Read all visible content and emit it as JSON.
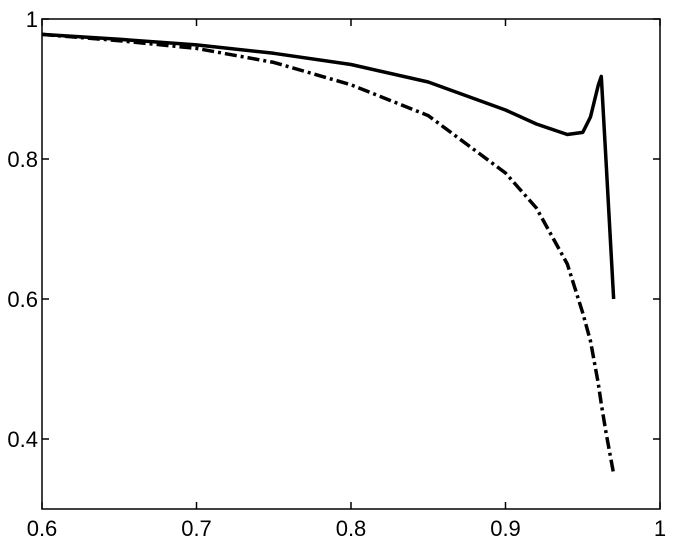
{
  "chart_data": {
    "type": "line",
    "x": [
      0.6,
      0.65,
      0.7,
      0.75,
      0.8,
      0.85,
      0.9,
      0.92,
      0.94,
      0.95,
      0.955,
      0.96,
      0.962,
      0.965,
      0.97
    ],
    "series": [
      {
        "color": "#000000",
        "linestyle": "solid",
        "values": [
          0.978,
          0.971,
          0.963,
          0.951,
          0.935,
          0.91,
          0.87,
          0.85,
          0.835,
          0.838,
          0.86,
          0.905,
          0.918,
          0.8,
          0.6
        ]
      },
      {
        "color": "#000000",
        "linestyle": "dashdot",
        "values": [
          0.978,
          0.969,
          0.958,
          0.938,
          0.906,
          0.862,
          0.78,
          0.73,
          0.65,
          0.58,
          0.54,
          0.48,
          0.45,
          0.41,
          0.35
        ]
      }
    ],
    "xlim": [
      0.6,
      1
    ],
    "ylim": [
      0.3,
      1
    ],
    "xticks": [
      0.6,
      0.7,
      0.8,
      0.9,
      1
    ],
    "yticks": [
      0.4,
      0.6,
      0.8,
      1
    ],
    "grid": false
  }
}
